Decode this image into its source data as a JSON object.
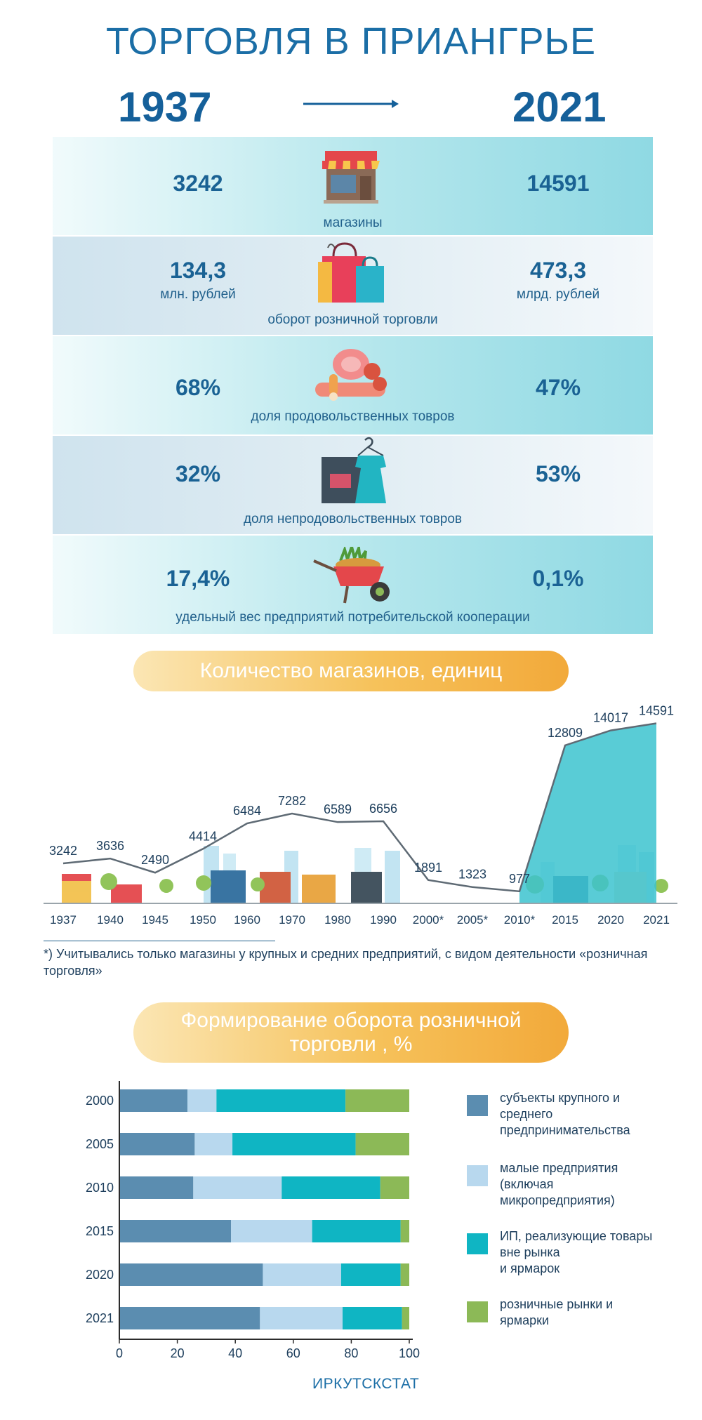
{
  "header": {
    "title": "ТОРГОВЛЯ В ПРИАНГРЬЕ",
    "year_from": "1937",
    "year_to": "2021"
  },
  "comparison": [
    {
      "value_1937": "3242",
      "unit_1937": "",
      "value_2021": "14591",
      "unit_2021": "",
      "label": "магазины",
      "icon": "shop-icon"
    },
    {
      "value_1937": "134,3",
      "unit_1937": "млн. рублей",
      "value_2021": "473,3",
      "unit_2021": "млрд. рублей",
      "label": "оборот розничной торговли",
      "icon": "shopping-bags-icon"
    },
    {
      "value_1937": "68%",
      "unit_1937": "",
      "value_2021": "47%",
      "unit_2021": "",
      "label": "доля продовольственных товров",
      "icon": "food-icon"
    },
    {
      "value_1937": "32%",
      "unit_1937": "",
      "value_2021": "53%",
      "unit_2021": "",
      "label": "доля непродовольственных товров",
      "icon": "clothes-icon"
    },
    {
      "value_1937": "17,4%",
      "unit_1937": "",
      "value_2021": "0,1%",
      "unit_2021": "",
      "label": "удельный вес предприятий потребительской кооперации",
      "icon": "wheelbarrow-icon"
    }
  ],
  "stores_section": {
    "title": "Количество магазинов, единиц",
    "footnote": "*) Учитывались только магазины у крупных и средних предприятий, с  видом деятельности «розничная торговля»"
  },
  "turnover_section": {
    "title_line1": "Формирование оборота розничной",
    "title_line2": "торговли , %",
    "legend": [
      {
        "label_lines": [
          "субъекты крупного и",
          "среднего",
          "предпринимательства"
        ],
        "color": "#5b8db0"
      },
      {
        "label_lines": [
          "малые предприятия",
          "(включая",
          "микропредприятия)"
        ],
        "color": "#b8d8ee"
      },
      {
        "label_lines": [
          "ИП, реализующие товары",
          "вне рынка",
          "и ярмарок"
        ],
        "color": "#0fb5c3"
      },
      {
        "label_lines": [
          "розничные рынки и",
          "ярмарки"
        ],
        "color": "#8cb957"
      }
    ]
  },
  "source": "ИРКУТСКСТАТ",
  "chart_data": [
    {
      "type": "area",
      "title": "Количество магазинов, единиц",
      "categories": [
        "1937",
        "1940",
        "1945",
        "1950",
        "1960",
        "1970",
        "1980",
        "1990",
        "2000*",
        "2005*",
        "2010*",
        "2015",
        "2020",
        "2021"
      ],
      "values": [
        3242,
        3636,
        2490,
        4414,
        6484,
        7282,
        6589,
        6656,
        1891,
        1323,
        977,
        12809,
        14017,
        14591
      ],
      "value_labels": [
        "3242",
        "3636",
        "2490",
        "4414",
        "6484",
        "7282",
        "6589",
        "6656",
        "1891",
        "1323",
        "977",
        "12809",
        "14017",
        "14591"
      ],
      "xlabel": "",
      "ylabel": "",
      "ylim": [
        0,
        16000
      ],
      "colors": {
        "line": "#5e6a74",
        "area": "#3cc3cf"
      }
    },
    {
      "type": "bar",
      "orientation": "horizontal-stacked",
      "title": "Формирование оборота розничной торговли , %",
      "categories": [
        "2000",
        "2005",
        "2010",
        "2015",
        "2020",
        "2021"
      ],
      "series": [
        {
          "name": "субъекты крупного и среднего предпринимательства",
          "values": [
            23.5,
            26,
            25.5,
            38.5,
            49.5,
            48.5
          ],
          "color": "#5b8db0"
        },
        {
          "name": "малые предприятия (включая микропредприятия)",
          "values": [
            10,
            13,
            30.5,
            28,
            27,
            28.5
          ],
          "color": "#b8d8ee"
        },
        {
          "name": "ИП, реализующие товары вне рынка и ярмарок",
          "values": [
            44.5,
            42.5,
            34,
            30.5,
            20.5,
            20.5
          ],
          "color": "#0fb5c3"
        },
        {
          "name": "розничные рынки и ярмарки",
          "values": [
            22,
            18.5,
            10,
            3,
            3,
            2.5
          ],
          "color": "#8cb957"
        }
      ],
      "xlim": [
        0,
        100
      ],
      "xticks": [
        "0",
        "20",
        "40",
        "60",
        "80",
        "100"
      ],
      "grid": false,
      "legend": "right"
    }
  ]
}
